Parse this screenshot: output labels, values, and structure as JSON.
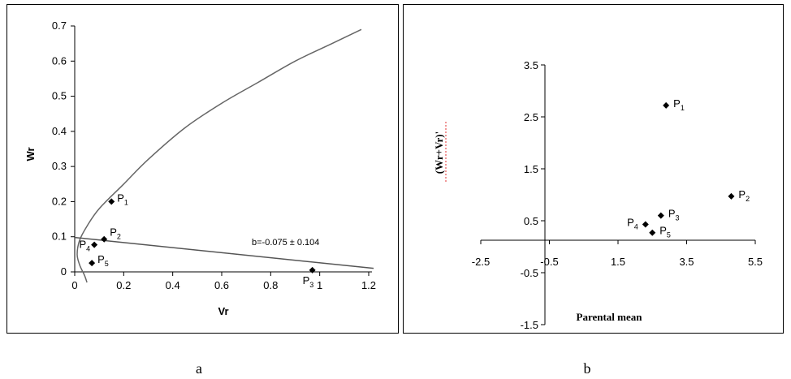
{
  "chart_data": [
    {
      "type": "scatter",
      "panel_label": "a",
      "xlabel": "Vr",
      "ylabel": "Wr",
      "xlim": [
        0,
        1.2
      ],
      "ylim": [
        0,
        0.7
      ],
      "x_ticks": [
        0,
        0.2,
        0.4,
        0.6,
        0.8,
        1,
        1.2
      ],
      "x_tick_labels": [
        "0",
        "0.2",
        "0.4",
        "0.6",
        "0.8",
        "1",
        "1.2"
      ],
      "y_ticks": [
        0,
        0.1,
        0.2,
        0.3,
        0.4,
        0.5,
        0.6,
        0.7
      ],
      "y_tick_labels": [
        "0",
        "0.1",
        "0.2",
        "0.3",
        "0.4",
        "0.5",
        "0.6",
        "0.7"
      ],
      "points": [
        {
          "base": "P",
          "sub": "1",
          "x": 0.15,
          "y": 0.2,
          "label_side": "right"
        },
        {
          "base": "P",
          "sub": "2",
          "x": 0.12,
          "y": 0.093,
          "label_side": "upright"
        },
        {
          "base": "P",
          "sub": "3",
          "x": 0.97,
          "y": 0.005,
          "label_side": "below"
        },
        {
          "base": "P",
          "sub": "4",
          "x": 0.08,
          "y": 0.077,
          "label_side": "left"
        },
        {
          "base": "P",
          "sub": "5",
          "x": 0.07,
          "y": 0.025,
          "label_side": "right"
        }
      ],
      "regression_line": {
        "x1": 0,
        "y1": 0.098,
        "x2": 1.22,
        "y2": 0.01
      },
      "annotation": "b=-0.075 ± 0.104",
      "parabola_curve": [
        [
          0.05,
          -0.03
        ],
        [
          0.04,
          -0.01
        ],
        [
          0.02,
          0.02
        ],
        [
          0.01,
          0.05
        ],
        [
          0.02,
          0.09
        ],
        [
          0.05,
          0.13
        ],
        [
          0.1,
          0.18
        ],
        [
          0.2,
          0.25
        ],
        [
          0.3,
          0.32
        ],
        [
          0.45,
          0.41
        ],
        [
          0.6,
          0.48
        ],
        [
          0.75,
          0.54
        ],
        [
          0.9,
          0.6
        ],
        [
          1.05,
          0.65
        ],
        [
          1.17,
          0.69
        ]
      ]
    },
    {
      "type": "scatter",
      "panel_label": "b",
      "xlabel": "Parental mean",
      "ylabel": "(Wr+Vr)'",
      "xlim": [
        -2.5,
        5.5
      ],
      "ylim": [
        -1.5,
        3.5
      ],
      "x_ticks": [
        -2.5,
        -0.5,
        1.5,
        3.5,
        5.5
      ],
      "x_tick_labels": [
        "-2.5",
        "-0.5",
        "1.5",
        "3.5",
        "5.5"
      ],
      "y_ticks": [
        -1.5,
        -0.5,
        0.5,
        1.5,
        2.5,
        3.5
      ],
      "y_tick_labels": [
        "-1.5",
        "-0.5",
        "0.5",
        "1.5",
        "2.5",
        "3.5"
      ],
      "points": [
        {
          "base": "P",
          "sub": "1",
          "x": 2.9,
          "y": 2.72,
          "label_side": "right"
        },
        {
          "base": "P",
          "sub": "2",
          "x": 4.8,
          "y": 0.97,
          "label_side": "right"
        },
        {
          "base": "P",
          "sub": "3",
          "x": 2.75,
          "y": 0.6,
          "label_side": "right"
        },
        {
          "base": "P",
          "sub": "4",
          "x": 2.3,
          "y": 0.43,
          "label_side": "left"
        },
        {
          "base": "P",
          "sub": "5",
          "x": 2.5,
          "y": 0.27,
          "label_side": "right"
        }
      ]
    }
  ]
}
